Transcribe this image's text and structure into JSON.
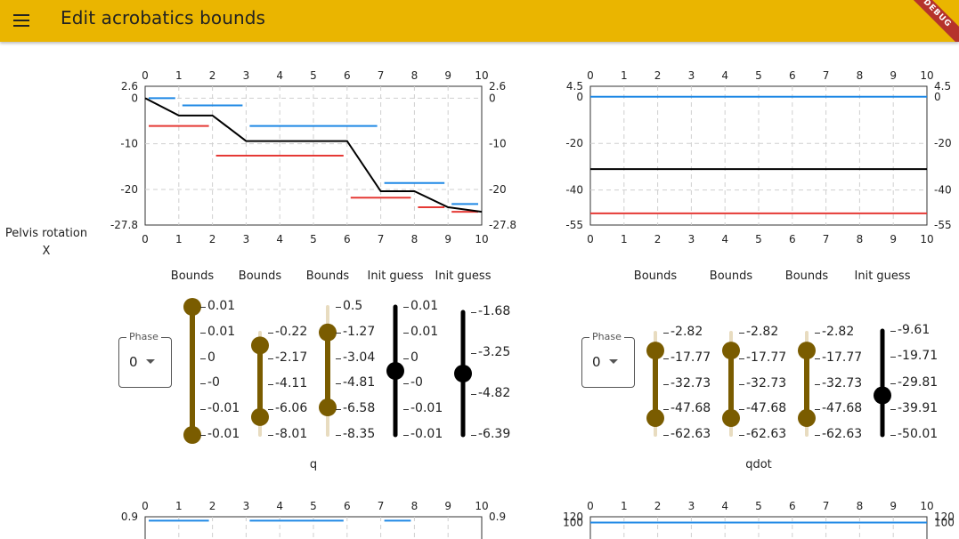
{
  "app": {
    "title": "Edit acrobatics bounds",
    "debug_banner": "DEBUG",
    "menu_icon": "menu-icon"
  },
  "row_label": {
    "line1": "Pelvis rotation",
    "line2": "X"
  },
  "colors": {
    "appbar": "#eab500",
    "min_bound": "#e53935",
    "max_bound": "#1e88e5",
    "init_guess": "#000000",
    "slider_bound": "#7a5c00",
    "slider_track": "#e8dcc0"
  },
  "chart_data": [
    {
      "id": "q_chart",
      "type": "line",
      "x_ticks": [
        "0",
        "1",
        "2",
        "3",
        "4",
        "5",
        "6",
        "7",
        "8",
        "9",
        "10"
      ],
      "xlim": [
        0,
        10
      ],
      "ylim": [
        -27.8,
        2.6
      ],
      "y_ticks": [
        "2.6",
        "0",
        "-10",
        "-20",
        "-27.8"
      ],
      "y_tick_values": [
        2.6,
        0,
        -10,
        -20,
        -27.8
      ],
      "series": [
        {
          "name": "max bound",
          "color": "#1e88e5",
          "segments": [
            [
              0,
              1,
              0
            ],
            [
              1,
              3,
              -1.6
            ],
            [
              3,
              7,
              -6.1
            ],
            [
              7,
              9,
              -18.6
            ],
            [
              9,
              10,
              -23.2
            ]
          ]
        },
        {
          "name": "min bound",
          "color": "#e53935",
          "segments": [
            [
              0,
              2,
              -6.1
            ],
            [
              2,
              6,
              -12.6
            ],
            [
              6,
              8,
              -21.8
            ],
            [
              8,
              9,
              -23.9
            ],
            [
              9,
              10,
              -24.9
            ]
          ]
        },
        {
          "name": "init guess",
          "color": "#000000",
          "x": [
            0,
            1,
            2,
            3,
            6,
            7,
            8,
            9,
            10
          ],
          "y": [
            0,
            -3.8,
            -3.8,
            -9.4,
            -9.4,
            -20.4,
            -20.4,
            -23.9,
            -24.9
          ]
        }
      ]
    },
    {
      "id": "qdot_chart",
      "type": "line",
      "x_ticks": [
        "0",
        "1",
        "2",
        "3",
        "4",
        "5",
        "6",
        "7",
        "8",
        "9",
        "10"
      ],
      "xlim": [
        0,
        10
      ],
      "ylim": [
        -55,
        4.5
      ],
      "y_ticks": [
        "4.5",
        "0",
        "-20",
        "-40",
        "-55"
      ],
      "y_tick_values": [
        4.5,
        0,
        -20,
        -40,
        -55
      ],
      "series": [
        {
          "name": "max bound",
          "color": "#1e88e5",
          "segments": [
            [
              0,
              10,
              0
            ]
          ]
        },
        {
          "name": "min bound",
          "color": "#e53935",
          "segments": [
            [
              0,
              10,
              -50
            ]
          ]
        },
        {
          "name": "init guess",
          "color": "#000000",
          "x": [
            0,
            10
          ],
          "y": [
            -31,
            -31
          ]
        }
      ]
    },
    {
      "id": "second_row_left_chart",
      "type": "line",
      "x_ticks": [
        "0",
        "1",
        "2",
        "3",
        "4",
        "5",
        "6",
        "7",
        "8",
        "9",
        "10"
      ],
      "xlim": [
        0,
        10
      ],
      "ylim": [
        0,
        0.9
      ],
      "y_ticks": [
        "0.9"
      ],
      "y_tick_values": [
        0.9
      ],
      "series": [
        {
          "name": "max bound",
          "color": "#1e88e5",
          "segments": [
            [
              0,
              2,
              0.8
            ],
            [
              3,
              6,
              0.8
            ],
            [
              7,
              8,
              0.8
            ]
          ]
        }
      ]
    },
    {
      "id": "second_row_right_chart",
      "type": "line",
      "x_ticks": [
        "0",
        "1",
        "2",
        "3",
        "4",
        "5",
        "6",
        "7",
        "8",
        "9",
        "10"
      ],
      "xlim": [
        0,
        10
      ],
      "ylim": [
        0,
        120
      ],
      "y_ticks": [
        "120",
        "100"
      ],
      "y_tick_values": [
        120,
        100
      ],
      "series": [
        {
          "name": "max bound",
          "color": "#1e88e5",
          "segments": [
            [
              0,
              10,
              100
            ]
          ]
        }
      ]
    }
  ],
  "q_panel": {
    "phase_label": "Phase",
    "phase_value": "0",
    "variable_label": "q",
    "sliders": [
      {
        "title": "Bounds",
        "kind": "range",
        "ticks": [
          "0.01",
          "0.01",
          "0",
          "-0",
          "-0.01",
          "-0.01"
        ],
        "low": 0.0,
        "high": 1.0
      },
      {
        "title": "Bounds",
        "kind": "range",
        "ticks": [
          "-0.22",
          "-2.17",
          "-4.11",
          "-6.06",
          "-8.01"
        ],
        "low": 0.125,
        "high": 0.825
      },
      {
        "title": "Bounds",
        "kind": "range",
        "ticks": [
          "0.5",
          "-1.27",
          "-3.04",
          "-4.81",
          "-6.58",
          "-8.35"
        ],
        "low": 0.2,
        "high": 0.785
      },
      {
        "title": "Init guess",
        "kind": "single",
        "ticks": [
          "0.01",
          "0.01",
          "0",
          "-0",
          "-0.01",
          "-0.01"
        ],
        "value": 0.5
      },
      {
        "title": "Init guess",
        "kind": "single",
        "ticks": [
          "-1.68",
          "-3.25",
          "-4.82",
          "-6.39"
        ],
        "value": 0.5
      }
    ]
  },
  "qdot_panel": {
    "phase_label": "Phase",
    "phase_value": "0",
    "variable_label": "qdot",
    "sliders": [
      {
        "title": "Bounds",
        "kind": "range",
        "ticks": [
          "-2.82",
          "-17.77",
          "-32.73",
          "-47.68",
          "-62.63"
        ],
        "low": 0.175,
        "high": 0.835
      },
      {
        "title": "Bounds",
        "kind": "range",
        "ticks": [
          "-2.82",
          "-17.77",
          "-32.73",
          "-47.68",
          "-62.63"
        ],
        "low": 0.175,
        "high": 0.835
      },
      {
        "title": "Bounds",
        "kind": "range",
        "ticks": [
          "-2.82",
          "-17.77",
          "-32.73",
          "-47.68",
          "-62.63"
        ],
        "low": 0.175,
        "high": 0.835
      },
      {
        "title": "Init guess",
        "kind": "single",
        "ticks": [
          "-9.61",
          "-19.71",
          "-29.81",
          "-39.91",
          "-50.01"
        ],
        "value": 0.62
      }
    ]
  }
}
